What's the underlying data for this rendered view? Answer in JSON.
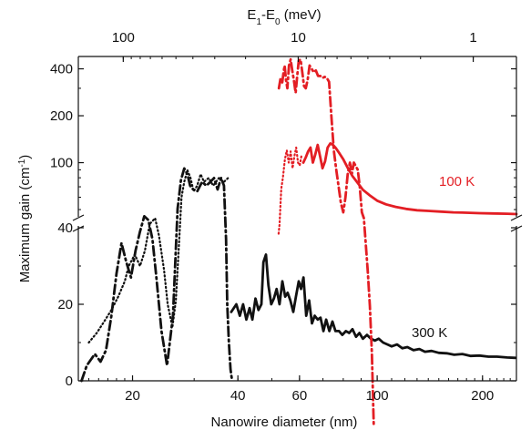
{
  "chart_data": {
    "type": "line",
    "xlabel": "Nanowire diameter (nm)",
    "x2label_main": "E",
    "x2label_sub1": "1",
    "x2label_mid": "-E",
    "x2label_sub2": "0",
    "x2label_unit": " (meV)",
    "ylabel_main": "Maximum gain (cm",
    "ylabel_sup": "-1",
    "ylabel_end": ")",
    "x_scale": "log",
    "xlim": [
      14,
      250
    ],
    "x_ticks": [
      20,
      40,
      60,
      100,
      200
    ],
    "x_tick_labels": [
      "20",
      "40",
      "60",
      "100",
      "200"
    ],
    "x2_ticks": [
      100,
      10,
      1
    ],
    "x2_tick_labels": [
      "100",
      "10",
      "1"
    ],
    "y_lower_lim": [
      0,
      40
    ],
    "y_lower_ticks": [
      0,
      20,
      40
    ],
    "y_lower_tick_labels": [
      "0",
      "20",
      "40"
    ],
    "y_upper_scale": "log",
    "y_upper_lim": [
      42,
      480
    ],
    "y_upper_ticks": [
      100,
      200,
      400
    ],
    "y_upper_tick_labels": [
      "100",
      "200",
      "400"
    ],
    "annotations": [
      {
        "text": "300 K",
        "color": "#111111"
      },
      {
        "text": "100 K",
        "color": "#e31e24"
      }
    ],
    "series": [
      {
        "temperature": "300 K",
        "panel": "lower",
        "style": "dotted",
        "color": "#111111",
        "x": [
          15,
          15.8,
          16.6,
          17.4,
          18.2,
          19,
          19.5,
          20.3,
          21,
          21.7,
          22.4,
          23.2,
          23.8,
          24.6,
          25.2,
          26,
          26.6,
          27.2,
          27.6,
          28.1,
          28.7,
          29.3,
          29.9,
          30.6,
          31.3,
          32,
          33,
          34,
          35.3,
          36.5,
          37.5
        ],
        "y": [
          10,
          12.5,
          15.5,
          18.5,
          22,
          26,
          30,
          33,
          30,
          34,
          41,
          42.5,
          38,
          29,
          20,
          14,
          21,
          37,
          48,
          52,
          55,
          53,
          49.5,
          51,
          54,
          52,
          53,
          51,
          53,
          52,
          53
        ]
      },
      {
        "temperature": "300 K",
        "panel": "lower",
        "style": "dashdot",
        "color": "#111111",
        "x": [
          14.3,
          14.8,
          15.6,
          16.2,
          16.8,
          17.4,
          18,
          18.6,
          19.2,
          19.8,
          20.4,
          21,
          21.6,
          22.2,
          22.8,
          23.4,
          24.2,
          25.1,
          26.1,
          26.9,
          27.5,
          28.1,
          28.7,
          29.2,
          29.8,
          30.6,
          31.6,
          32.5,
          33.4,
          34.2,
          35,
          35.8,
          36.5,
          37,
          37.3,
          37.7,
          38.1,
          38.5
        ],
        "y": [
          0,
          4,
          7,
          5,
          8,
          17,
          28,
          36,
          31,
          27,
          34,
          39,
          43,
          42,
          37,
          27,
          13,
          4,
          17,
          45,
          52.5,
          55.5,
          54,
          51,
          50,
          49.5,
          52,
          51,
          52,
          53,
          50,
          53,
          51,
          37,
          20,
          10,
          3,
          0
        ]
      },
      {
        "temperature": "300 K",
        "panel": "lower",
        "style": "solid",
        "color": "#111111",
        "x": [
          38.3,
          39.6,
          40.5,
          41.4,
          42.3,
          43.2,
          44,
          44.9,
          45.8,
          46.7,
          47.3,
          48.1,
          48.9,
          49.8,
          50.7,
          51.6,
          52.6,
          53.6,
          54.6,
          55.5,
          56.5,
          57.6,
          58.6,
          59.7,
          60.6,
          61.6,
          62.7,
          63.9,
          65.1,
          66.3,
          67.6,
          68.9,
          70.2,
          71.5,
          73,
          74.5,
          76,
          77.8,
          79.5,
          81.4,
          83.2,
          85,
          87,
          89,
          91,
          93.5,
          96,
          98.5,
          101,
          104,
          107,
          110,
          114,
          118,
          122,
          127,
          132,
          137,
          143,
          150,
          158,
          166,
          175,
          185,
          196,
          208,
          220,
          235,
          248
        ],
        "y": [
          18,
          20,
          17,
          20,
          16,
          19,
          16,
          21.5,
          18.5,
          20,
          31,
          33,
          25,
          20,
          21.5,
          24,
          20,
          26,
          22,
          23,
          21,
          18,
          22,
          26,
          24,
          27,
          17,
          21,
          15,
          17,
          16,
          16.5,
          13,
          16,
          13,
          15.5,
          13,
          13,
          12,
          13,
          12.5,
          13.5,
          11.5,
          12.5,
          11,
          12,
          11,
          10.5,
          11,
          10,
          9.5,
          9,
          9.5,
          8.5,
          8.8,
          8,
          8.3,
          7.6,
          7.8,
          7.3,
          7.2,
          6.8,
          7,
          6.5,
          6.6,
          6.3,
          6.3,
          6.1,
          6
        ],
        "y_bottom_line_note": "values below 40 on lower linear panel"
      },
      {
        "temperature": "100 K",
        "panel": "upper",
        "style": "dotted",
        "color": "#e31e24",
        "x": [
          52.3,
          52.6,
          53.2,
          53.8,
          54.5,
          55.2,
          55.9,
          56.6,
          57.3,
          58,
          58.7,
          59.4,
          60.1,
          60.8
        ],
        "y": [
          35,
          40,
          68,
          80,
          105,
          120,
          100,
          118,
          92,
          110,
          125,
          100,
          96,
          112
        ]
      },
      {
        "temperature": "100 K",
        "panel": "upper",
        "style": "solid",
        "color": "#e31e24",
        "x": [
          61.5,
          62.5,
          63.5,
          64.5,
          65.5,
          66.5,
          67.6,
          68.7,
          69.8,
          71,
          72.2,
          73.5,
          74.8,
          76.2,
          78,
          80,
          82.5,
          85,
          88,
          91,
          95,
          100,
          106,
          113,
          121,
          130,
          140,
          152,
          165,
          180,
          196,
          214,
          235,
          250
        ],
        "y": [
          100,
          108,
          118,
          125,
          100,
          112,
          130,
          110,
          92,
          102,
          125,
          133,
          130,
          124,
          115,
          105,
          92,
          82,
          74,
          67,
          62,
          57,
          54,
          52,
          50.5,
          49.5,
          49,
          48.5,
          48,
          47.7,
          47.4,
          47.2,
          47,
          46.8
        ]
      },
      {
        "temperature": "100 K",
        "panel": "upper",
        "style": "dashdot",
        "color": "#e31e24",
        "x": [
          52.4,
          53,
          53.5,
          54,
          54.4,
          54.9,
          55.4,
          56,
          56.6,
          57.2,
          57.9,
          58.5,
          59.1,
          59.7,
          60.4,
          61.1,
          61.8,
          62.5,
          63.3,
          64.1,
          65,
          65.9,
          66.8,
          67.8,
          68.8,
          69.8,
          70.8,
          71.8,
          72.9,
          74,
          75.2,
          76.4,
          77.6,
          78.8,
          80,
          81.2,
          82.4,
          83.6,
          84.7,
          85.8,
          86.9,
          88,
          89.2,
          90.4,
          91.6,
          92.8,
          94,
          95.3,
          96.6,
          97.8,
          99
        ],
        "y": [
          300,
          350,
          320,
          380,
          420,
          340,
          300,
          420,
          460,
          390,
          330,
          280,
          360,
          450,
          460,
          380,
          310,
          300,
          340,
          420,
          400,
          380,
          390,
          360,
          360,
          350,
          355,
          350,
          330,
          200,
          120,
          90,
          70,
          55,
          48,
          60,
          85,
          100,
          85,
          100,
          95,
          90,
          70,
          48,
          44,
          30,
          20,
          12,
          6,
          2,
          0
        ]
      }
    ]
  }
}
